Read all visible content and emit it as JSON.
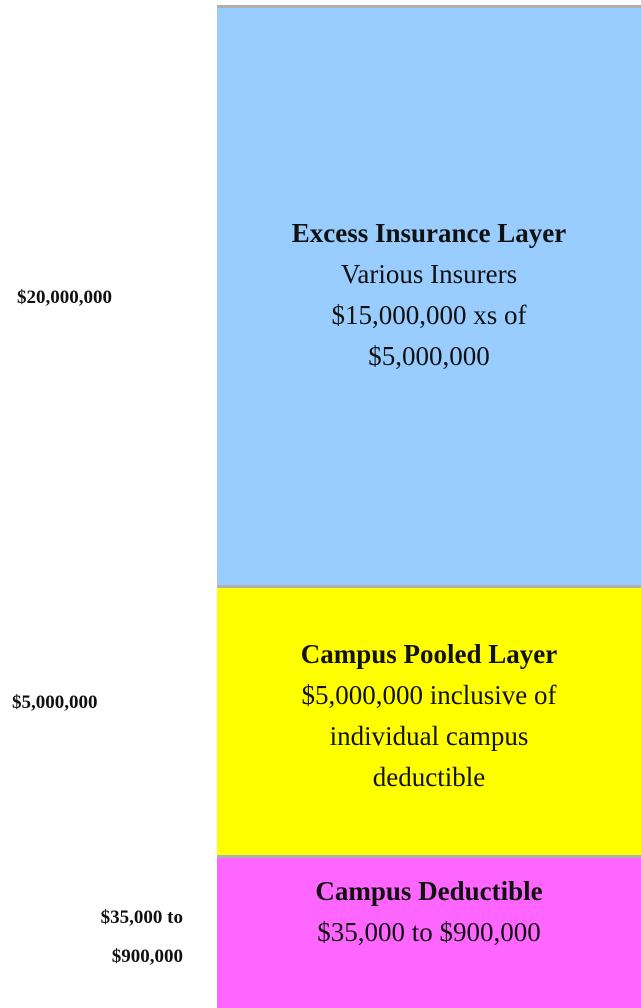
{
  "layers": [
    {
      "side_label": [
        "$20,000,000"
      ],
      "title": "Excess Insurance Layer",
      "lines": [
        "Various Insurers",
        "$15,000,000 xs of",
        "$5,000,000"
      ]
    },
    {
      "side_label": [
        "$5,000,000"
      ],
      "title": "Campus Pooled Layer",
      "lines": [
        "$5,000,000 inclusive of",
        "individual campus",
        "deductible"
      ]
    },
    {
      "side_label": [
        "$35,000 to",
        "$900,000"
      ],
      "title": "Campus Deductible",
      "lines": [
        "$35,000 to $900,000"
      ]
    }
  ]
}
